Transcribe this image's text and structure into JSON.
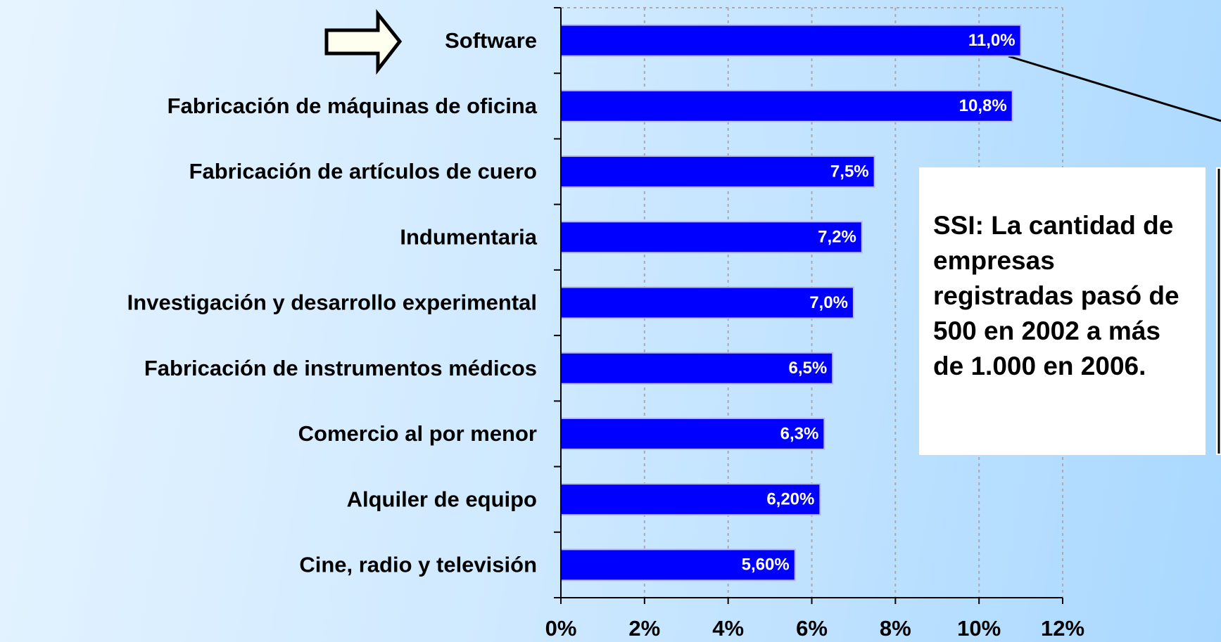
{
  "chart_data": {
    "type": "bar",
    "orientation": "horizontal",
    "categories": [
      "Software",
      "Fabricación de máquinas de oficina",
      "Fabricación de artículos de cuero",
      "Indumentaria",
      "Investigación y desarrollo experimental",
      "Fabricación de instrumentos médicos",
      "Comercio al por menor",
      "Alquiler de equipo",
      "Cine, radio y televisión"
    ],
    "values": [
      11.0,
      10.8,
      7.5,
      7.2,
      7.0,
      6.5,
      6.3,
      6.2,
      5.6
    ],
    "value_labels": [
      "11,0%",
      "10,8%",
      "7,5%",
      "7,2%",
      "7,0%",
      "6,5%",
      "6,3%",
      "6,20%",
      "5,60%"
    ],
    "color": "#0000ff",
    "xlim": [
      0,
      12
    ],
    "xticks": [
      {
        "value": 0,
        "label": "0%"
      },
      {
        "value": 2,
        "label": "2%"
      },
      {
        "value": 4,
        "label": "4%"
      },
      {
        "value": 6,
        "label": "6%"
      },
      {
        "value": 8,
        "label": "8%"
      },
      {
        "value": 10,
        "label": "10%"
      },
      {
        "value": 12,
        "label": "12%"
      }
    ],
    "grid": true,
    "annotation": "SSI: La cantidad de empresas registradas pasó de 500 en 2002 a más de 1.000 en 2006."
  }
}
